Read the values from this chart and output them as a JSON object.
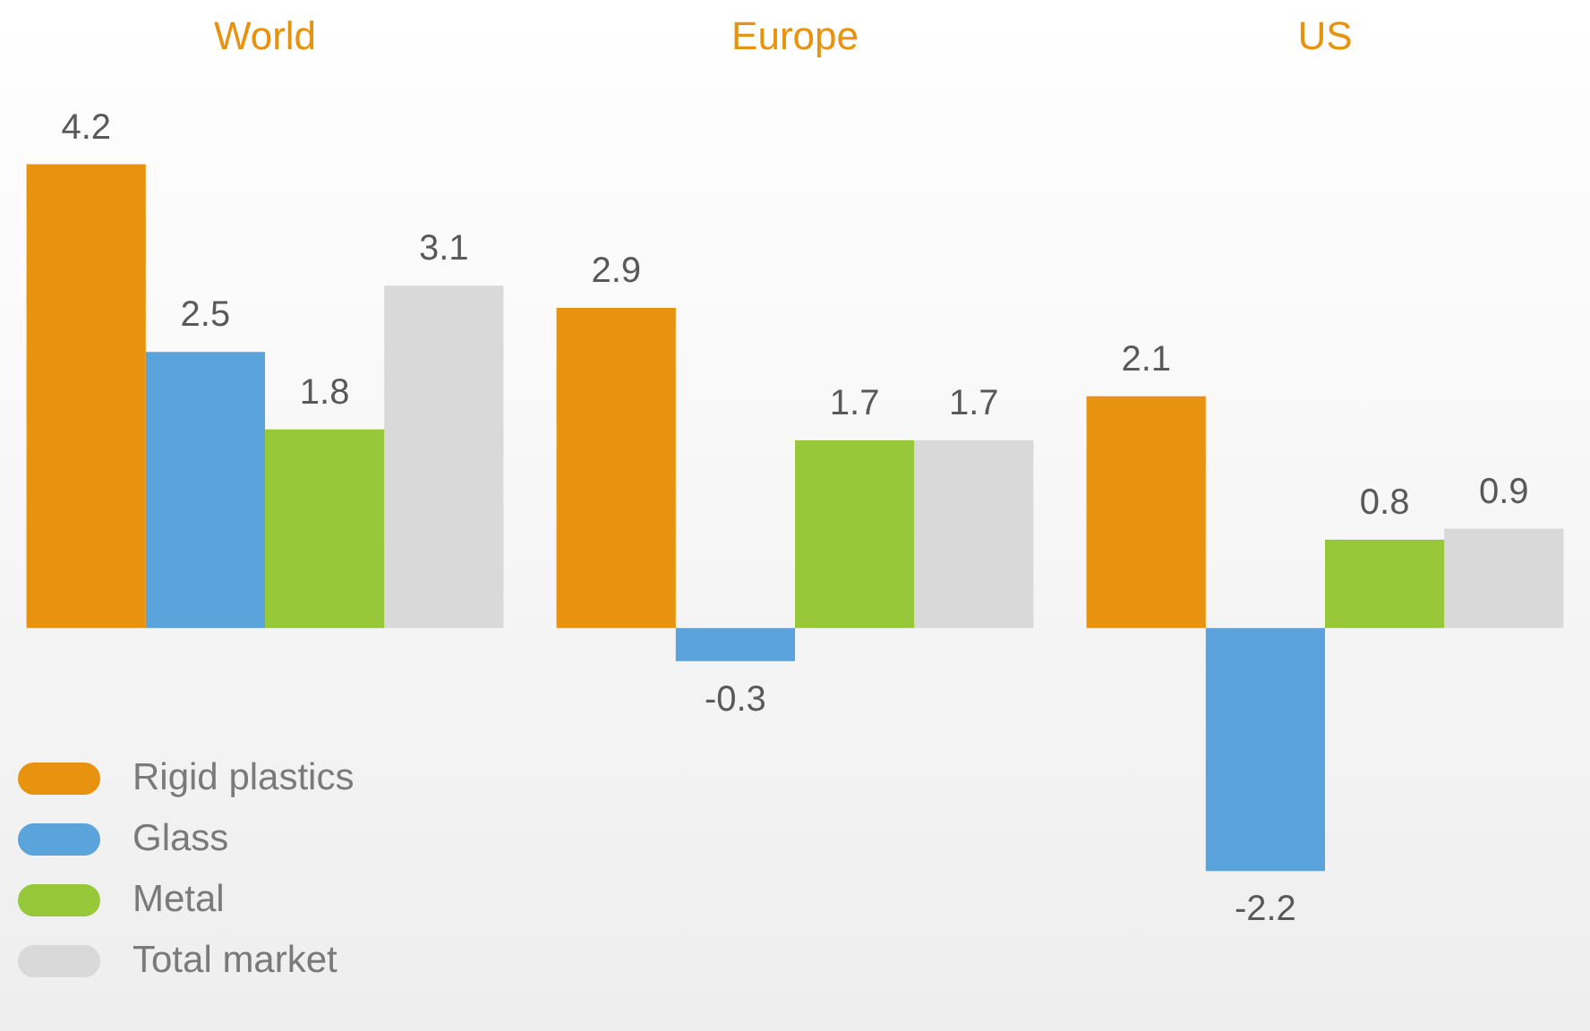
{
  "chart_data": {
    "type": "bar",
    "categories": [
      "World",
      "Europe",
      "US"
    ],
    "series": [
      {
        "name": "Rigid plastics",
        "color": "#e8930f",
        "values": [
          4.2,
          2.9,
          2.1
        ]
      },
      {
        "name": "Glass",
        "color": "#5ba3db",
        "values": [
          2.5,
          -0.3,
          -2.2
        ]
      },
      {
        "name": "Metal",
        "color": "#96c83a",
        "values": [
          1.8,
          1.7,
          0.8
        ]
      },
      {
        "name": "Total market",
        "color": "#d9d9d9",
        "values": [
          3.1,
          1.7,
          0.9
        ]
      }
    ],
    "data_labels": true,
    "grid": false,
    "legend": "bottom left"
  }
}
